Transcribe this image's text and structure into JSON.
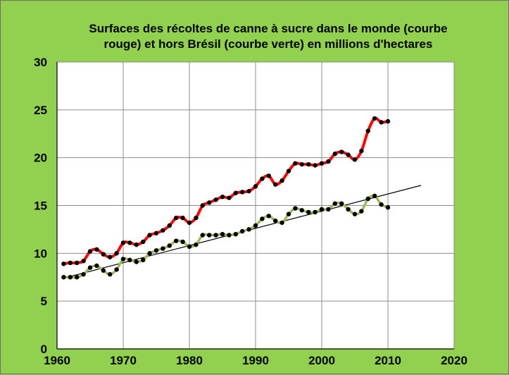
{
  "chart_data": {
    "type": "line",
    "title_lines": [
      "Surfaces des récoltes de canne à sucre dans le monde (courbe",
      "rouge)  et  hors Brésil (courbe verte) en millions d'hectares"
    ],
    "xlim": [
      1960,
      2020
    ],
    "ylim": [
      0,
      30
    ],
    "x_ticks": [
      "1960",
      "1970",
      "1980",
      "1990",
      "2000",
      "2010",
      "2020"
    ],
    "y_ticks": [
      "0",
      "5",
      "10",
      "15",
      "20",
      "25",
      "30"
    ],
    "grid": true,
    "background_color": "#92d050",
    "plot_background": "#ffffff",
    "series": [
      {
        "color": "#ff0000",
        "x": [
          1961,
          1962,
          1963,
          1964,
          1965,
          1966,
          1967,
          1968,
          1969,
          1970,
          1971,
          1972,
          1973,
          1974,
          1975,
          1976,
          1977,
          1978,
          1979,
          1980,
          1981,
          1982,
          1983,
          1984,
          1985,
          1986,
          1987,
          1988,
          1989,
          1990,
          1991,
          1992,
          1993,
          1994,
          1995,
          1996,
          1997,
          1998,
          1999,
          2000,
          2001,
          2002,
          2003,
          2004,
          2005,
          2006,
          2007,
          2008,
          2009,
          2010
        ],
        "y": [
          8.9,
          9.0,
          9.0,
          9.2,
          10.2,
          10.4,
          9.9,
          9.6,
          10.0,
          11.1,
          11.1,
          10.9,
          11.2,
          11.9,
          12.1,
          12.4,
          12.9,
          13.7,
          13.7,
          13.2,
          13.7,
          15.0,
          15.3,
          15.6,
          15.9,
          15.8,
          16.3,
          16.4,
          16.5,
          17.0,
          17.8,
          18.1,
          17.2,
          17.6,
          18.6,
          19.4,
          19.3,
          19.3,
          19.2,
          19.4,
          19.6,
          20.4,
          20.6,
          20.3,
          19.8,
          20.7,
          22.8,
          24.1,
          23.7,
          23.8
        ]
      },
      {
        "color": "#9bbb59",
        "x": [
          1961,
          1962,
          1963,
          1964,
          1965,
          1966,
          1967,
          1968,
          1969,
          1970,
          1971,
          1972,
          1973,
          1974,
          1975,
          1976,
          1977,
          1978,
          1979,
          1980,
          1981,
          1982,
          1983,
          1984,
          1985,
          1986,
          1987,
          1988,
          1989,
          1990,
          1991,
          1992,
          1993,
          1994,
          1995,
          1996,
          1997,
          1998,
          1999,
          2000,
          2001,
          2002,
          2003,
          2004,
          2005,
          2006,
          2007,
          2008,
          2009,
          2010
        ],
        "y": [
          7.5,
          7.5,
          7.5,
          7.8,
          8.5,
          8.7,
          8.2,
          7.8,
          8.3,
          9.4,
          9.3,
          9.1,
          9.3,
          10.0,
          10.3,
          10.5,
          10.8,
          11.3,
          11.2,
          10.7,
          10.9,
          11.9,
          11.9,
          11.9,
          12.0,
          11.9,
          12.0,
          12.3,
          12.5,
          12.9,
          13.6,
          13.9,
          13.4,
          13.2,
          14.1,
          14.7,
          14.5,
          14.3,
          14.3,
          14.6,
          14.6,
          15.2,
          15.2,
          14.6,
          14.1,
          14.4,
          15.7,
          16.0,
          15.1,
          14.8
        ]
      }
    ],
    "trendline": {
      "color": "#000000",
      "x": [
        1961,
        2015
      ],
      "y": [
        7.4,
        17.1
      ]
    }
  }
}
